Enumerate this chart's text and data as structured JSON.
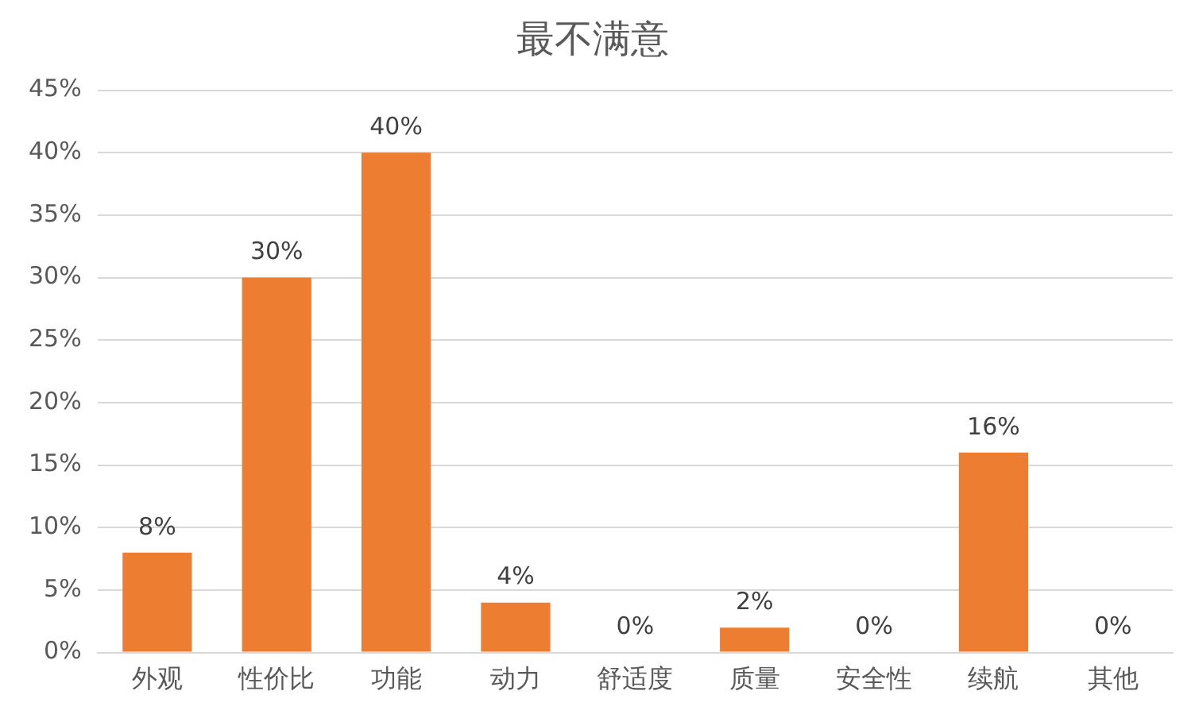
{
  "chart_data": {
    "type": "bar",
    "title": "最不满意",
    "categories": [
      "外观",
      "性价比",
      "功能",
      "动力",
      "舒适度",
      "质量",
      "安全性",
      "续航",
      "其他"
    ],
    "values": [
      8,
      30,
      40,
      4,
      0,
      2,
      0,
      16,
      0
    ],
    "value_labels": [
      "8%",
      "30%",
      "40%",
      "4%",
      "0%",
      "2%",
      "0%",
      "16%",
      "0%"
    ],
    "color": "#ed7d31",
    "ylim": [
      0,
      45
    ],
    "yticks": [
      {
        "value": 0,
        "label": "0%"
      },
      {
        "value": 5,
        "label": "5%"
      },
      {
        "value": 10,
        "label": "10%"
      },
      {
        "value": 15,
        "label": "15%"
      },
      {
        "value": 20,
        "label": "20%"
      },
      {
        "value": 25,
        "label": "25%"
      },
      {
        "value": 30,
        "label": "30%"
      },
      {
        "value": 35,
        "label": "35%"
      },
      {
        "value": 40,
        "label": "40%"
      },
      {
        "value": 45,
        "label": "45%"
      }
    ],
    "grid": "y",
    "legend": false
  }
}
